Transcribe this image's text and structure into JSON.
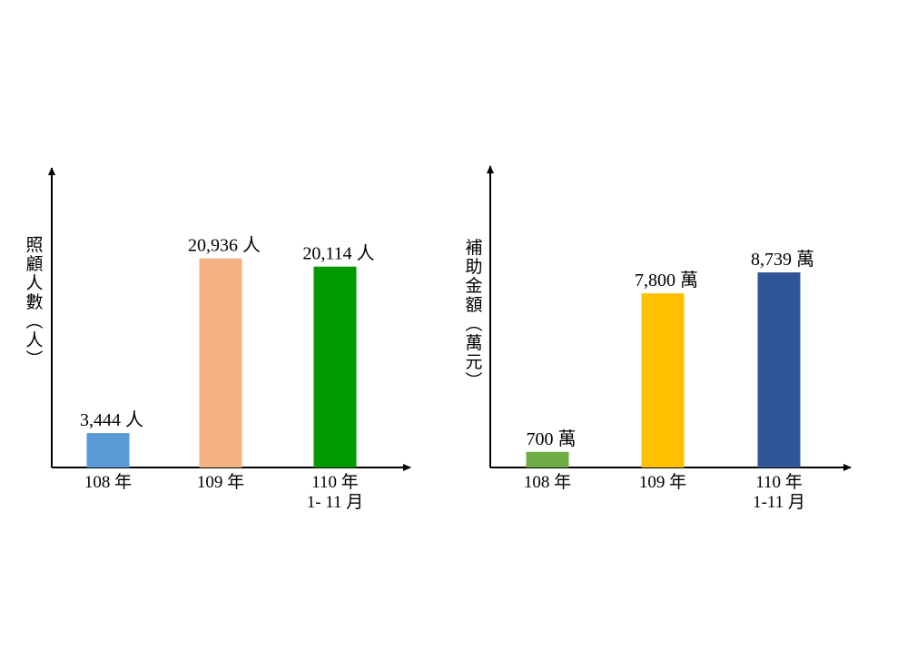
{
  "colors": {
    "axis": "#000000",
    "background": "#ffffff"
  },
  "chart_data": [
    {
      "type": "bar",
      "ylabel": "照顧人數(人)",
      "categories": [
        [
          "108 年"
        ],
        [
          "109 年"
        ],
        [
          "110 年",
          "1- 11 月"
        ]
      ],
      "values": [
        3444,
        20936,
        20114
      ],
      "value_labels": [
        "3,444 人",
        "20,936 人",
        "20,114 人"
      ],
      "colors": [
        "#5b9bd5",
        "#f4b183",
        "#009900"
      ],
      "ylim": [
        0,
        30000
      ]
    },
    {
      "type": "bar",
      "ylabel": "補助金額(萬元)",
      "categories": [
        [
          "108 年"
        ],
        [
          "109 年"
        ],
        [
          "110 年",
          "1-11 月"
        ]
      ],
      "values": [
        700,
        7800,
        8739
      ],
      "value_labels": [
        "700 萬",
        "7,800 萬",
        "8,739 萬"
      ],
      "colors": [
        "#70ad47",
        "#ffc000",
        "#2f5597"
      ],
      "ylim": [
        0,
        13500
      ]
    }
  ]
}
